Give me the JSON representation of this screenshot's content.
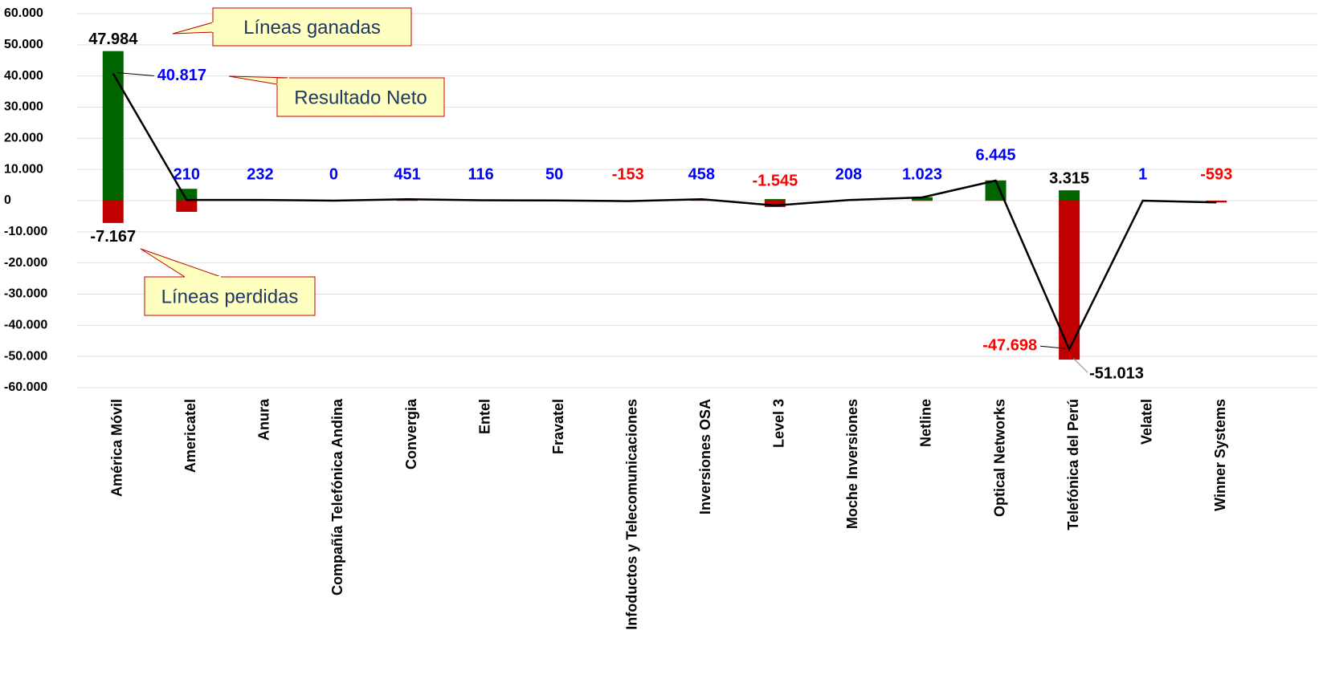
{
  "chart_data": {
    "type": "bar-line",
    "categories": [
      "América Móvil",
      "Americatel",
      "Anura",
      "Compañía Telefónica Andina",
      "Convergia",
      "Entel",
      "Fravatel",
      "Infoductos y Telecomunicaciones",
      "Inversiones OSA",
      "Level 3",
      "Moche Inversiones",
      "Netline",
      "Optical Networks",
      "Telefónica del Perú",
      "Velatel",
      "Winner Systems"
    ],
    "series": [
      {
        "name": "Líneas ganadas",
        "kind": "bar",
        "color": "#006400",
        "values": [
          47984,
          3800,
          300,
          0,
          500,
          150,
          80,
          50,
          500,
          500,
          250,
          1100,
          6500,
          3315,
          1,
          0
        ],
        "value_labels": [
          "47.984",
          null,
          null,
          null,
          null,
          null,
          null,
          null,
          null,
          null,
          null,
          null,
          null,
          "3.315",
          null,
          null
        ]
      },
      {
        "name": "Líneas perdidas",
        "kind": "bar",
        "color": "#c00000",
        "values": [
          -7167,
          -3590,
          -68,
          0,
          -49,
          -34,
          -30,
          -203,
          -42,
          -2045,
          -42,
          -77,
          -55,
          -51013,
          0,
          -593
        ],
        "value_labels": [
          "-7.167",
          null,
          null,
          null,
          null,
          null,
          null,
          null,
          null,
          null,
          null,
          null,
          null,
          "-51.013",
          null,
          null
        ]
      },
      {
        "name": "Resultado Neto",
        "kind": "line",
        "color": "#000000",
        "label_colors": {
          "positive": "#0000ff",
          "negative": "#ff0000"
        },
        "values": [
          40817,
          210,
          232,
          0,
          451,
          116,
          50,
          -153,
          458,
          -1545,
          208,
          1023,
          6445,
          -47698,
          1,
          -593
        ],
        "value_labels": [
          "40.817",
          "210",
          "232",
          "0",
          "451",
          "116",
          "50",
          "-153",
          "458",
          "-1.545",
          "208",
          "1.023",
          "6.445",
          "-47.698",
          "1",
          "-593"
        ]
      }
    ],
    "ylim": [
      -60000,
      60000
    ],
    "yticks": [
      {
        "value": -60000,
        "label": "-60.000"
      },
      {
        "value": -50000,
        "label": "-50.000"
      },
      {
        "value": -40000,
        "label": "-40.000"
      },
      {
        "value": -30000,
        "label": "-30.000"
      },
      {
        "value": -20000,
        "label": "-20.000"
      },
      {
        "value": -10000,
        "label": "-10.000"
      },
      0,
      {
        "value": 10000,
        "label": "10.000"
      },
      {
        "value": 20000,
        "label": "20.000"
      },
      {
        "value": 30000,
        "label": "30.000"
      },
      {
        "value": 40000,
        "label": "40.000"
      },
      {
        "value": 50000,
        "label": "50.000"
      },
      {
        "value": 60000,
        "label": "60.000"
      }
    ],
    "grid": true
  }
}
